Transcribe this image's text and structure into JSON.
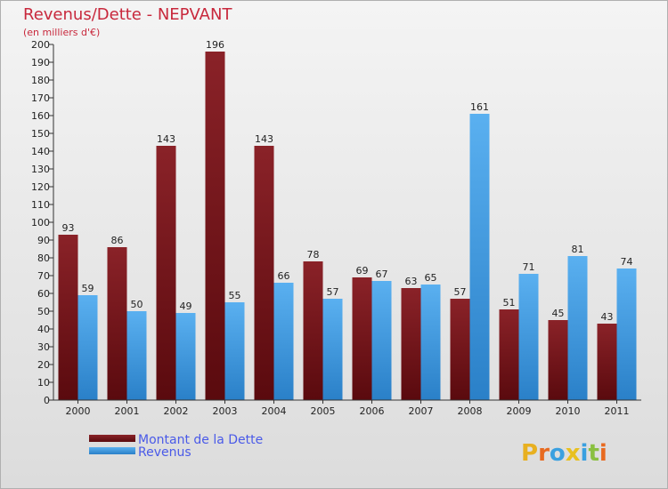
{
  "chart_data": {
    "type": "bar",
    "title": "Revenus/Dette - NEPVANT",
    "subtitle": "(en milliers d'€)",
    "categories": [
      "2000",
      "2001",
      "2002",
      "2003",
      "2004",
      "2005",
      "2006",
      "2007",
      "2008",
      "2009",
      "2010",
      "2011"
    ],
    "series": [
      {
        "name": "Montant de la Dette",
        "color": "#7a1a1e",
        "values": [
          93,
          86,
          143,
          196,
          143,
          78,
          69,
          63,
          57,
          51,
          45,
          43
        ]
      },
      {
        "name": "Revenus",
        "color": "#3d9be0",
        "values": [
          59,
          50,
          49,
          55,
          66,
          57,
          67,
          65,
          161,
          71,
          81,
          74
        ]
      }
    ],
    "ylim": [
      0,
      200
    ],
    "ytick_step": 10,
    "grid": false,
    "legend_position": "bottom-left"
  },
  "logo": {
    "text": "Proxiti",
    "letters": [
      "P",
      "r",
      "o",
      "x",
      "i",
      "t",
      "i"
    ],
    "colors": [
      "#e8b020",
      "#e86a20",
      "#3aa0e0",
      "#e8c020",
      "#3aa0e0",
      "#8ac040",
      "#e86a20"
    ]
  }
}
